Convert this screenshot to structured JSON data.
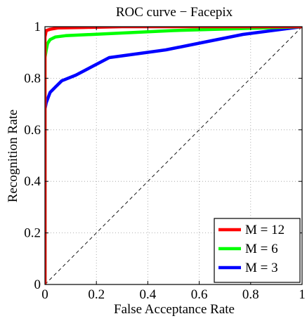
{
  "chart_data": {
    "type": "line",
    "title": "ROC curve − Facepix",
    "xlabel": "False Acceptance Rate",
    "ylabel": "Recognition Rate",
    "xlim": [
      0,
      1
    ],
    "ylim": [
      0,
      1
    ],
    "xticks": [
      "0",
      "0.2",
      "0.4",
      "0.6",
      "0.8",
      "1"
    ],
    "yticks": [
      "0",
      "0.2",
      "0.4",
      "0.6",
      "0.8",
      "1"
    ],
    "xtick_values": [
      0,
      0.2,
      0.4,
      0.6,
      0.8,
      1
    ],
    "ytick_values": [
      0,
      0.2,
      0.4,
      0.6,
      0.8,
      1
    ],
    "grid": true,
    "grid_style": "dotted",
    "legend_position": "bottom-right",
    "reference_line": {
      "style": "dashed",
      "color": "#000000",
      "x": [
        0,
        1
      ],
      "y": [
        0,
        1
      ]
    },
    "series": [
      {
        "name": "M = 12",
        "color": "#ff0000",
        "x": [
          0,
          0.0,
          0.005,
          0.02,
          0.05,
          0.15,
          0.3,
          1.0
        ],
        "y": [
          0,
          0.96,
          0.985,
          0.99,
          0.995,
          0.997,
          1.0,
          1.0
        ]
      },
      {
        "name": "M = 6",
        "color": "#00ff00",
        "x": [
          0,
          0.0,
          0.005,
          0.01,
          0.02,
          0.04,
          0.08,
          0.5,
          0.85,
          1.0
        ],
        "y": [
          0,
          0.88,
          0.91,
          0.935,
          0.95,
          0.96,
          0.965,
          0.985,
          0.995,
          1.0
        ]
      },
      {
        "name": "M = 3",
        "color": "#0000ff",
        "x": [
          0,
          0.0,
          0.005,
          0.02,
          0.04,
          0.065,
          0.12,
          0.25,
          0.47,
          0.62,
          0.77,
          1.0
        ],
        "y": [
          0,
          0.68,
          0.705,
          0.745,
          0.765,
          0.79,
          0.812,
          0.88,
          0.91,
          0.94,
          0.97,
          1.0
        ]
      }
    ]
  }
}
